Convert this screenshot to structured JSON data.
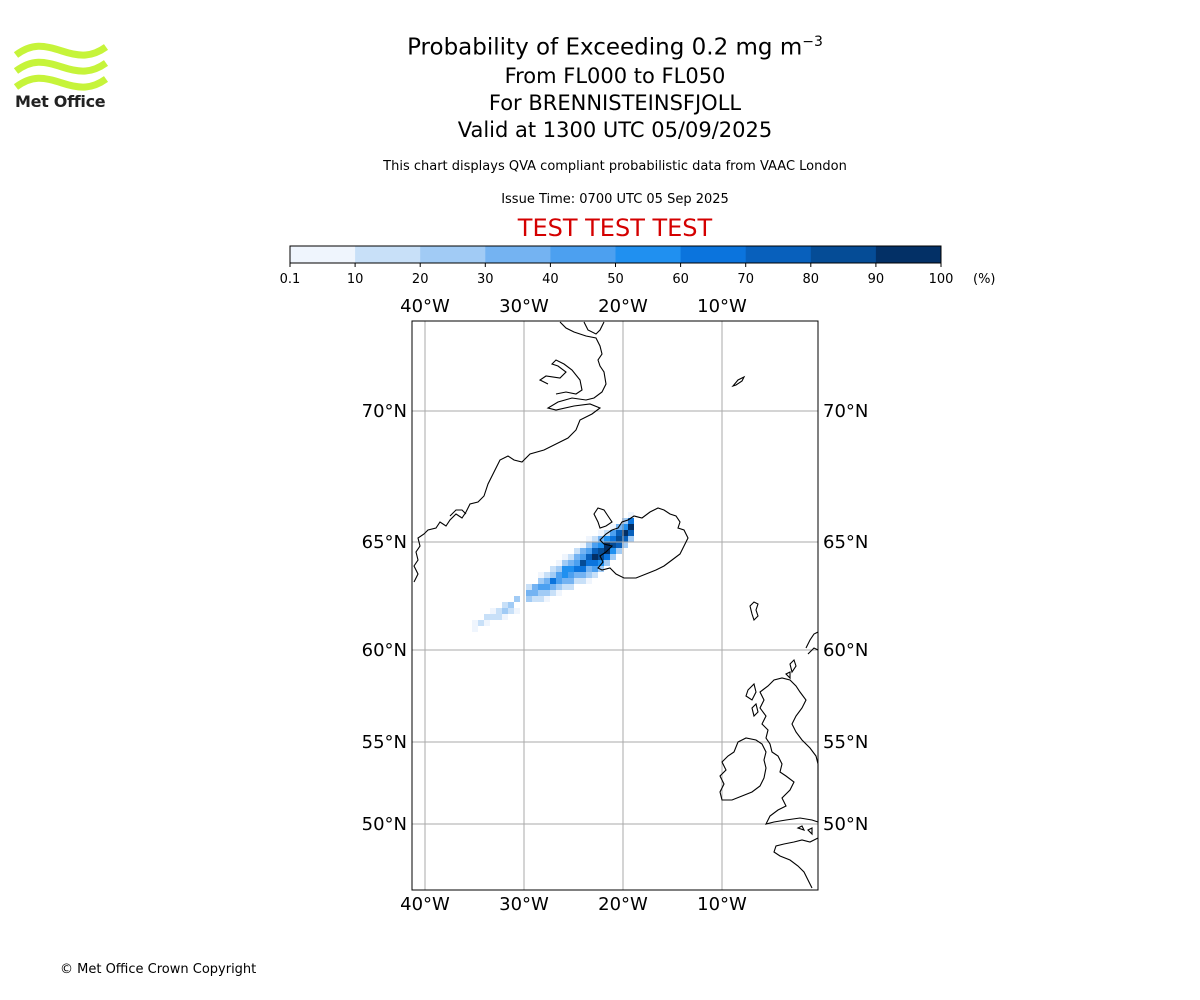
{
  "branding": {
    "logo_text": "Met Office",
    "logo_color": "#c6f43a",
    "copyright": "© Met Office Crown Copyright"
  },
  "header": {
    "title_prefix": "Probability of Exceeding 0.2 mg m",
    "title_superscript": "−3",
    "flight_levels": "From FL000 to FL050",
    "volcano": "For BRENNISTEINSFJOLL",
    "valid_time": "Valid at 1300 UTC 05/09/2025",
    "description": "This chart displays QVA compliant probabilistic data from VAAC London",
    "issue_time": "Issue Time: 0700 UTC 05 Sep 2025",
    "test_banner": "TEST TEST TEST",
    "test_color": "#d40000"
  },
  "colorbar": {
    "ticks": [
      "0.1",
      "10",
      "20",
      "30",
      "40",
      "50",
      "60",
      "70",
      "80",
      "90",
      "100"
    ],
    "unit": "(%)",
    "colors": [
      "#eff5fd",
      "#c8e0f8",
      "#a1cbf5",
      "#74b3f2",
      "#4ca0f0",
      "#2090f0",
      "#0b74dd",
      "#0860bc",
      "#054c96",
      "#033066"
    ]
  },
  "map": {
    "longitude_labels": [
      "40°W",
      "30°W",
      "20°W",
      "10°W"
    ],
    "latitude_labels": [
      "70°N",
      "65°N",
      "60°N",
      "55°N",
      "50°N"
    ],
    "gridline_color": "#aaaaaa"
  }
}
